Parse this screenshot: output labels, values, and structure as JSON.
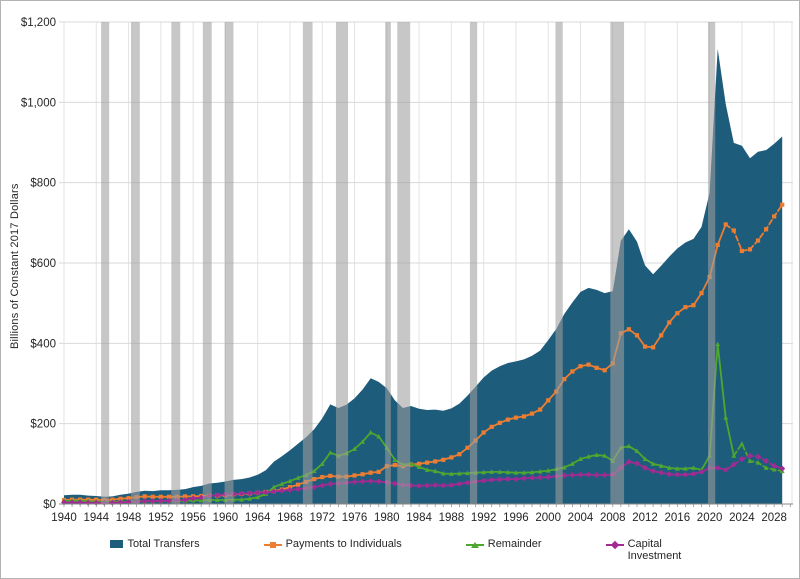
{
  "figure": {
    "y_axis_title": "Billions of Constant 2017 Dollars",
    "y_tick_labels": [
      "$0",
      "$200",
      "$400",
      "$600",
      "$800",
      "$1,000",
      "$1,200"
    ]
  },
  "legend": {
    "items": [
      {
        "label": "Total Transfers",
        "color": "#1E5C7C",
        "glyph": "area-swatch"
      },
      {
        "label": "Payments to Individuals",
        "color": "#ED7D31",
        "glyph": "line-square-marker"
      },
      {
        "label": "Remainder",
        "color": "#4EA72E",
        "glyph": "line-triangle-marker"
      },
      {
        "label": "Capital Investment",
        "color": "#A02B93",
        "glyph": "line-diamond-marker"
      }
    ]
  },
  "chart_data": {
    "type": "area",
    "title": "",
    "ylabel": "Billions of Constant 2017 Dollars",
    "xlabel": "",
    "ylim": [
      0,
      1200
    ],
    "y_tick_step": 200,
    "xlim": [
      1940,
      2030
    ],
    "x_major_ticks": [
      1940,
      1944,
      1948,
      1952,
      1956,
      1960,
      1964,
      1968,
      1972,
      1976,
      1980,
      1984,
      1988,
      1992,
      1996,
      2000,
      2004,
      2008,
      2012,
      2016,
      2020,
      2024,
      2028
    ],
    "grid": true,
    "legend_position": "bottom",
    "x": [
      1940,
      1941,
      1942,
      1943,
      1944,
      1945,
      1946,
      1947,
      1948,
      1949,
      1950,
      1951,
      1952,
      1953,
      1954,
      1955,
      1956,
      1957,
      1958,
      1959,
      1960,
      1961,
      1962,
      1963,
      1964,
      1965,
      1966,
      1967,
      1968,
      1969,
      1970,
      1971,
      1972,
      1973,
      1974,
      1975,
      1976,
      1977,
      1978,
      1979,
      1980,
      1981,
      1982,
      1983,
      1984,
      1985,
      1986,
      1987,
      1988,
      1989,
      1990,
      1991,
      1992,
      1993,
      1994,
      1995,
      1996,
      1997,
      1998,
      1999,
      2000,
      2001,
      2002,
      2003,
      2004,
      2005,
      2006,
      2007,
      2008,
      2009,
      2010,
      2011,
      2012,
      2013,
      2014,
      2015,
      2016,
      2017,
      2018,
      2019,
      2020,
      2021,
      2022,
      2023,
      2024,
      2025,
      2026,
      2027,
      2028,
      2029
    ],
    "series": [
      {
        "name": "Total Transfers",
        "type": "area",
        "color": "#1E5C7C",
        "marker": "none",
        "dash_from": null,
        "values": [
          22,
          23,
          23,
          21,
          20,
          18,
          19,
          23,
          26,
          30,
          33,
          32,
          34,
          34,
          35,
          37,
          42,
          45,
          51,
          53,
          56,
          60,
          62,
          66,
          73,
          84,
          105,
          119,
          134,
          150,
          166,
          186,
          213,
          248,
          239,
          247,
          263,
          285,
          313,
          304,
          288,
          258,
          239,
          244,
          237,
          234,
          235,
          232,
          238,
          250,
          270,
          292,
          315,
          332,
          343,
          351,
          355,
          360,
          369,
          382,
          408,
          436,
          473,
          502,
          528,
          538,
          533,
          525,
          530,
          655,
          684,
          653,
          594,
          572,
          593,
          616,
          636,
          651,
          660,
          690,
          775,
          1133,
          996,
          899,
          892,
          861,
          877,
          881,
          897,
          915
        ]
      },
      {
        "name": "Payments to Individuals",
        "type": "line",
        "color": "#ED7D31",
        "marker": "square",
        "dash_from": 2022,
        "values": [
          10,
          11,
          11,
          11,
          11,
          10,
          11,
          13,
          15,
          17,
          19,
          18,
          18,
          18,
          18,
          19,
          19,
          20,
          21,
          21,
          22,
          24,
          25,
          26,
          28,
          30,
          32,
          36,
          42,
          48,
          55,
          62,
          67,
          70,
          68,
          68,
          71,
          74,
          78,
          80,
          94,
          97,
          94,
          98,
          100,
          103,
          106,
          110,
          116,
          124,
          140,
          158,
          178,
          192,
          202,
          210,
          215,
          218,
          225,
          235,
          258,
          280,
          311,
          330,
          343,
          347,
          339,
          333,
          350,
          425,
          435,
          420,
          392,
          390,
          420,
          452,
          475,
          490,
          495,
          525,
          565,
          645,
          696,
          681,
          630,
          634,
          656,
          684,
          716,
          745
        ]
      },
      {
        "name": "Remainder",
        "type": "line",
        "color": "#4EA72E",
        "marker": "triangle",
        "dash_from": 2023,
        "values": [
          8,
          8,
          8,
          7,
          6,
          5,
          5,
          6,
          6,
          7,
          7,
          7,
          8,
          8,
          8,
          8,
          9,
          9,
          10,
          10,
          10,
          11,
          11,
          13,
          17,
          25,
          42,
          50,
          57,
          65,
          72,
          82,
          100,
          128,
          120,
          126,
          137,
          155,
          178,
          168,
          140,
          110,
          98,
          100,
          92,
          85,
          82,
          76,
          75,
          76,
          77,
          78,
          79,
          80,
          80,
          79,
          78,
          78,
          79,
          81,
          83,
          87,
          91,
          100,
          112,
          118,
          122,
          120,
          107,
          140,
          144,
          132,
          112,
          100,
          95,
          90,
          88,
          88,
          90,
          85,
          120,
          398,
          215,
          120,
          150,
          107,
          103,
          90,
          86,
          82
        ]
      },
      {
        "name": "Capital Investment",
        "type": "line",
        "color": "#A02B93",
        "marker": "diamond",
        "dash_from": 2023,
        "values": [
          4,
          4,
          4,
          3,
          3,
          3,
          3,
          4,
          5,
          6,
          7,
          7,
          8,
          8,
          9,
          10,
          14,
          16,
          20,
          22,
          24,
          25,
          26,
          27,
          28,
          29,
          31,
          33,
          35,
          37,
          39,
          42,
          46,
          50,
          51,
          53,
          55,
          56,
          57,
          56,
          54,
          51,
          47,
          46,
          45,
          46,
          47,
          46,
          47,
          50,
          53,
          56,
          58,
          60,
          61,
          62,
          62,
          64,
          65,
          66,
          67,
          69,
          71,
          72,
          73,
          73,
          72,
          72,
          73,
          90,
          105,
          101,
          90,
          82,
          78,
          74,
          73,
          73,
          75,
          80,
          90,
          90,
          85,
          98,
          112,
          120,
          118,
          107,
          95,
          88
        ]
      }
    ],
    "recession_bands": [
      [
        1944.6,
        1945.6
      ],
      [
        1948.3,
        1949.4
      ],
      [
        1953.3,
        1954.4
      ],
      [
        1957.2,
        1958.3
      ],
      [
        1959.9,
        1961.0
      ],
      [
        1969.6,
        1970.8
      ],
      [
        1973.7,
        1975.2
      ],
      [
        1979.8,
        1980.5
      ],
      [
        1981.3,
        1982.9
      ],
      [
        1990.3,
        1991.2
      ],
      [
        2000.9,
        2001.8
      ],
      [
        2007.7,
        2009.4
      ],
      [
        2019.8,
        2020.7
      ]
    ],
    "recession_band_color": "rgba(158,158,158,0.58)"
  }
}
